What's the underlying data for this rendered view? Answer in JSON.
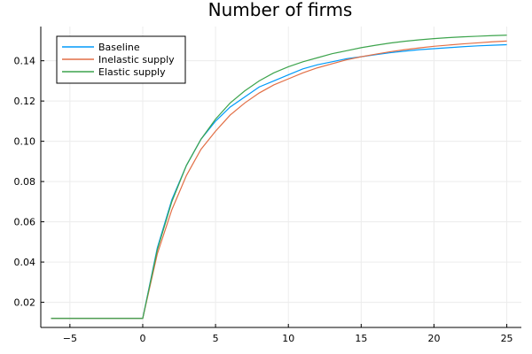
{
  "chart_data": {
    "type": "line",
    "title": "Number of firms",
    "xlabel": "",
    "ylabel": "",
    "xlim": [
      -7,
      26
    ],
    "ylim": [
      0.0075,
      0.157
    ],
    "xticks": [
      -5,
      0,
      5,
      10,
      15,
      20,
      25
    ],
    "xtick_labels": [
      "−5",
      "0",
      "5",
      "10",
      "15",
      "20",
      "25"
    ],
    "yticks": [
      0.02,
      0.04,
      0.06,
      0.08,
      0.1,
      0.12,
      0.14
    ],
    "ytick_labels": [
      "0.02",
      "0.04",
      "0.06",
      "0.08",
      "0.10",
      "0.12",
      "0.14"
    ],
    "grid": true,
    "legend_position": "top-left",
    "x": [
      -6.3,
      0,
      1,
      2,
      3,
      4,
      5,
      6,
      7,
      8,
      9,
      10,
      11,
      12,
      13,
      14,
      15,
      16,
      17,
      18,
      19,
      20,
      21,
      22,
      23,
      24,
      25
    ],
    "series": [
      {
        "name": "Baseline",
        "color": "#009AFA",
        "values": [
          0.012,
          0.012,
          0.047,
          0.071,
          0.088,
          0.101,
          0.11,
          0.117,
          0.122,
          0.127,
          0.13,
          0.133,
          0.136,
          0.138,
          0.1395,
          0.141,
          0.142,
          0.143,
          0.144,
          0.1448,
          0.1455,
          0.146,
          0.1465,
          0.147,
          0.1474,
          0.1477,
          0.148
        ]
      },
      {
        "name": "Inelastic supply",
        "color": "#E26F46",
        "values": [
          0.012,
          0.012,
          0.044,
          0.066,
          0.083,
          0.096,
          0.105,
          0.113,
          0.119,
          0.124,
          0.128,
          0.131,
          0.134,
          0.1365,
          0.1385,
          0.1405,
          0.142,
          0.1433,
          0.1445,
          0.1455,
          0.1464,
          0.1472,
          0.1478,
          0.1484,
          0.1489,
          0.1494,
          0.1498
        ]
      },
      {
        "name": "Elastic supply",
        "color": "#3DA44D",
        "values": [
          0.012,
          0.012,
          0.046,
          0.07,
          0.088,
          0.101,
          0.111,
          0.119,
          0.125,
          0.13,
          0.134,
          0.137,
          0.1395,
          0.1415,
          0.1435,
          0.145,
          0.1465,
          0.1477,
          0.1488,
          0.1497,
          0.1504,
          0.151,
          0.1515,
          0.1519,
          0.1522,
          0.1525,
          0.1527
        ]
      }
    ]
  }
}
